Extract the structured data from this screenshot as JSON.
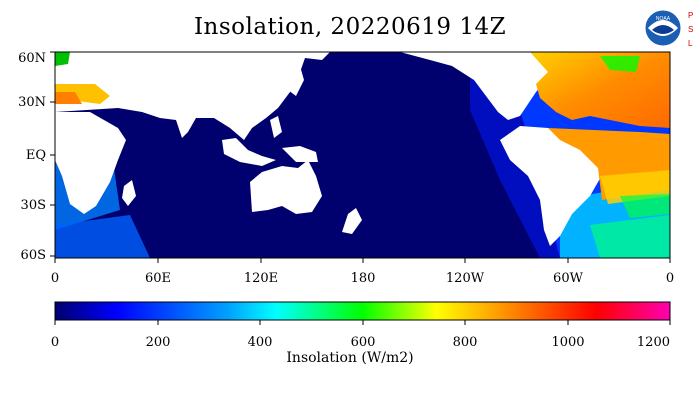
{
  "title": "Insolation, 20220619 14Z",
  "logo": {
    "text": "NOAA",
    "side_letters": [
      "P",
      "S",
      "L"
    ]
  },
  "map": {
    "lat_labels": [
      "60N",
      "30N",
      "EQ",
      "30S",
      "60S"
    ],
    "lon_labels": [
      "0",
      "60E",
      "120E",
      "180",
      "120W",
      "60W",
      "0"
    ],
    "ocean_color": "#00006e",
    "land_color": "#ffffff"
  },
  "colorbar": {
    "title": "Insolation (W/m2)",
    "ticks": [
      "0",
      "200",
      "400",
      "600",
      "800",
      "1000",
      "1200"
    ],
    "colors": [
      "#000070",
      "#0000ff",
      "#00a0ff",
      "#00ffff",
      "#00ff00",
      "#ffff00",
      "#ff8000",
      "#ff0000",
      "#ff00b0"
    ]
  }
}
